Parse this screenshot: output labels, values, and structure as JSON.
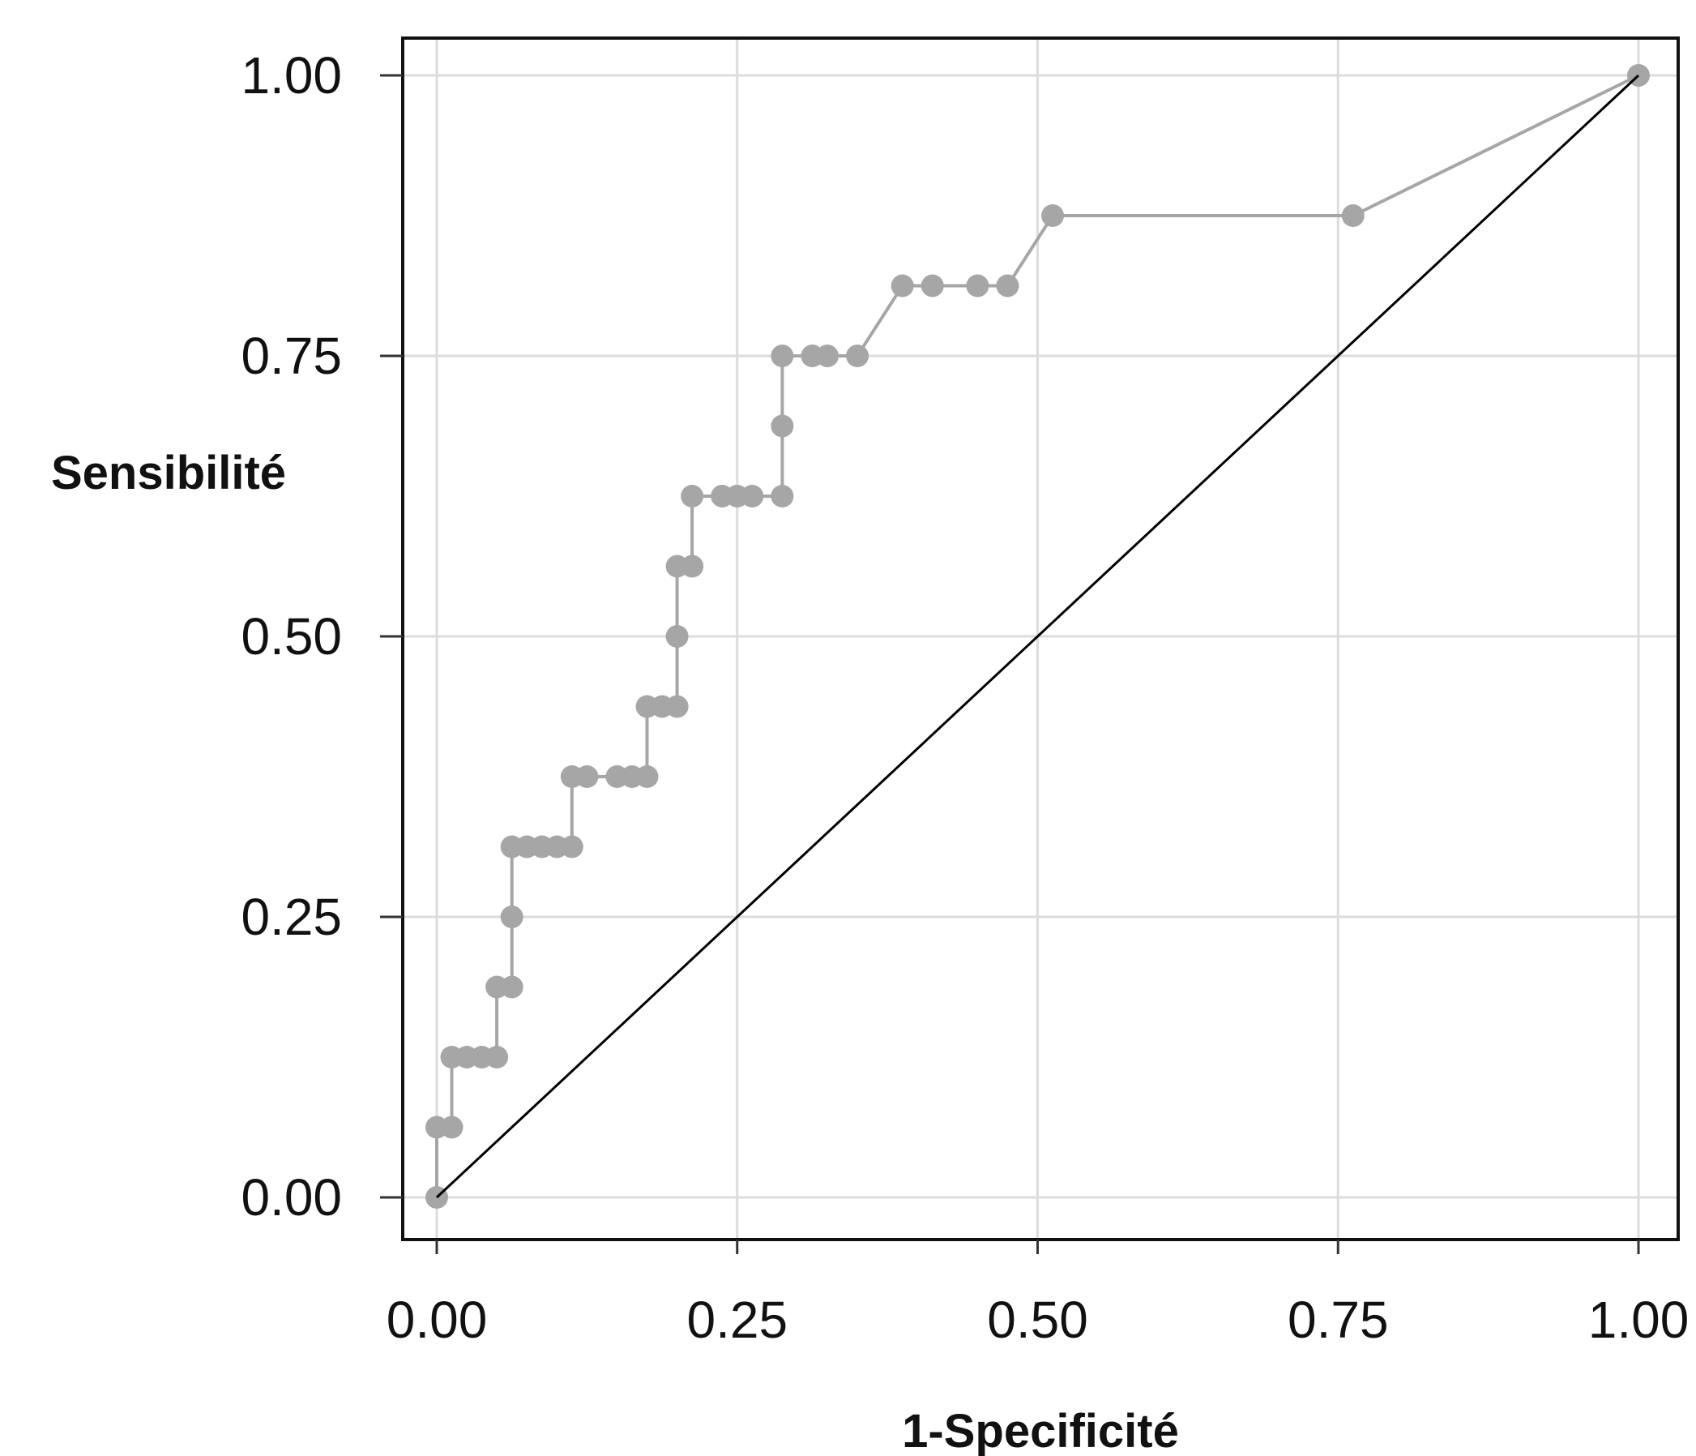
{
  "chart_data": {
    "type": "line",
    "title": "",
    "xlabel": "1-Specificité",
    "ylabel": "Sensibilité",
    "xlim": [
      0,
      1
    ],
    "ylim": [
      0,
      1
    ],
    "xticks": [
      0,
      0.25,
      0.5,
      0.75,
      1
    ],
    "yticks": [
      0,
      0.25,
      0.5,
      0.75,
      1
    ],
    "x_tick_labels": [
      "0.00",
      "0.25",
      "0.50",
      "0.75",
      "1.00"
    ],
    "y_tick_labels": [
      "0.00",
      "0.25",
      "0.50",
      "0.75",
      "1.00"
    ],
    "grid": true,
    "legend": "none",
    "series": [
      {
        "color": "#a6a6a6",
        "markers": true,
        "points": [
          [
            0.0,
            0.0
          ],
          [
            0.0,
            0.0625
          ],
          [
            0.0125,
            0.0625
          ],
          [
            0.0125,
            0.125
          ],
          [
            0.025,
            0.125
          ],
          [
            0.0375,
            0.125
          ],
          [
            0.05,
            0.125
          ],
          [
            0.05,
            0.1875
          ],
          [
            0.0625,
            0.1875
          ],
          [
            0.0625,
            0.25
          ],
          [
            0.0625,
            0.3125
          ],
          [
            0.075,
            0.3125
          ],
          [
            0.0875,
            0.3125
          ],
          [
            0.1,
            0.3125
          ],
          [
            0.1125,
            0.3125
          ],
          [
            0.1125,
            0.375
          ],
          [
            0.125,
            0.375
          ],
          [
            0.15,
            0.375
          ],
          [
            0.1625,
            0.375
          ],
          [
            0.175,
            0.375
          ],
          [
            0.175,
            0.4375
          ],
          [
            0.1875,
            0.4375
          ],
          [
            0.2,
            0.4375
          ],
          [
            0.2,
            0.5
          ],
          [
            0.2,
            0.5625
          ],
          [
            0.2125,
            0.5625
          ],
          [
            0.2125,
            0.625
          ],
          [
            0.2375,
            0.625
          ],
          [
            0.25,
            0.625
          ],
          [
            0.2625,
            0.625
          ],
          [
            0.2875,
            0.625
          ],
          [
            0.2875,
            0.6875
          ],
          [
            0.2875,
            0.75
          ],
          [
            0.3125,
            0.75
          ],
          [
            0.325,
            0.75
          ],
          [
            0.35,
            0.75
          ],
          [
            0.3875,
            0.8125
          ],
          [
            0.4125,
            0.8125
          ],
          [
            0.45,
            0.8125
          ],
          [
            0.475,
            0.8125
          ],
          [
            0.5125,
            0.875
          ],
          [
            0.7625,
            0.875
          ],
          [
            1.0,
            1.0
          ]
        ]
      },
      {
        "color": "#000000",
        "markers": false,
        "points": [
          [
            0,
            0
          ],
          [
            1,
            1
          ]
        ]
      }
    ]
  }
}
